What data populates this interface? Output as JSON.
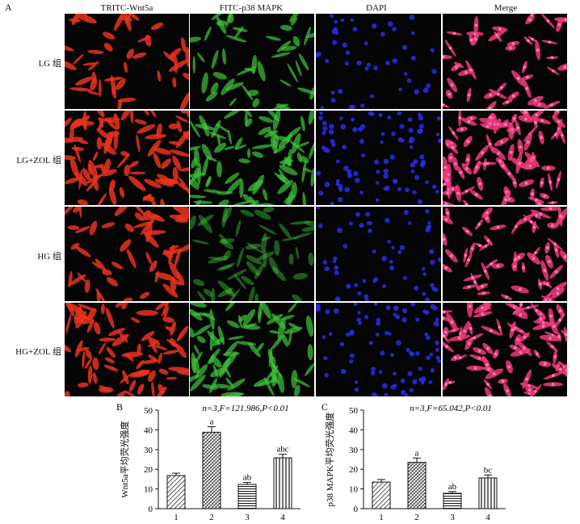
{
  "panel_a": {
    "letter": "A",
    "columns": [
      "TRITC-Wnt5a",
      "FITC-p38 MAPK",
      "DAPI",
      "Merge"
    ],
    "rows": [
      "LG 组",
      "LG+ZOL 组",
      "HG 组",
      "HG+ZOL 组"
    ],
    "channel_colors": {
      "TRITC-Wnt5a": "#e8321e",
      "FITC-p38 MAPK": "#3ec43a",
      "DAPI": "#2a2cf0",
      "Merge": "#f03a78"
    }
  },
  "chart_data": [
    {
      "panel": "B",
      "type": "bar",
      "title": "n=3,F=121.986,P<0.01",
      "ylabel": "Wnt5a平均荧光强度",
      "xlabel": "",
      "categories": [
        "1",
        "2",
        "3",
        "4"
      ],
      "values": [
        16.8,
        38.8,
        12.3,
        25.8
      ],
      "errors": [
        1.2,
        2.8,
        1.0,
        1.8
      ],
      "annotations": [
        "",
        "a",
        "ab",
        "abc"
      ],
      "patterns": [
        "diagonal-hatch",
        "dense-hatch",
        "horizontal-lines",
        "vertical-lines"
      ],
      "ylim": [
        0,
        50
      ],
      "yticks": [
        0,
        10,
        20,
        30,
        40,
        50
      ]
    },
    {
      "panel": "C",
      "type": "bar",
      "title": "n=3,F=65.042,P<0.01",
      "ylabel": "p38 MAPK平均荧光强度",
      "xlabel": "",
      "categories": [
        "1",
        "2",
        "3",
        "4"
      ],
      "values": [
        13.5,
        23.5,
        7.8,
        15.6
      ],
      "errors": [
        1.3,
        2.2,
        0.9,
        1.5
      ],
      "annotations": [
        "",
        "a",
        "ab",
        "bc"
      ],
      "patterns": [
        "diagonal-hatch",
        "dense-hatch",
        "horizontal-lines",
        "vertical-lines"
      ],
      "ylim": [
        0,
        50
      ],
      "yticks": [
        0,
        10,
        20,
        30,
        40,
        50
      ]
    }
  ]
}
